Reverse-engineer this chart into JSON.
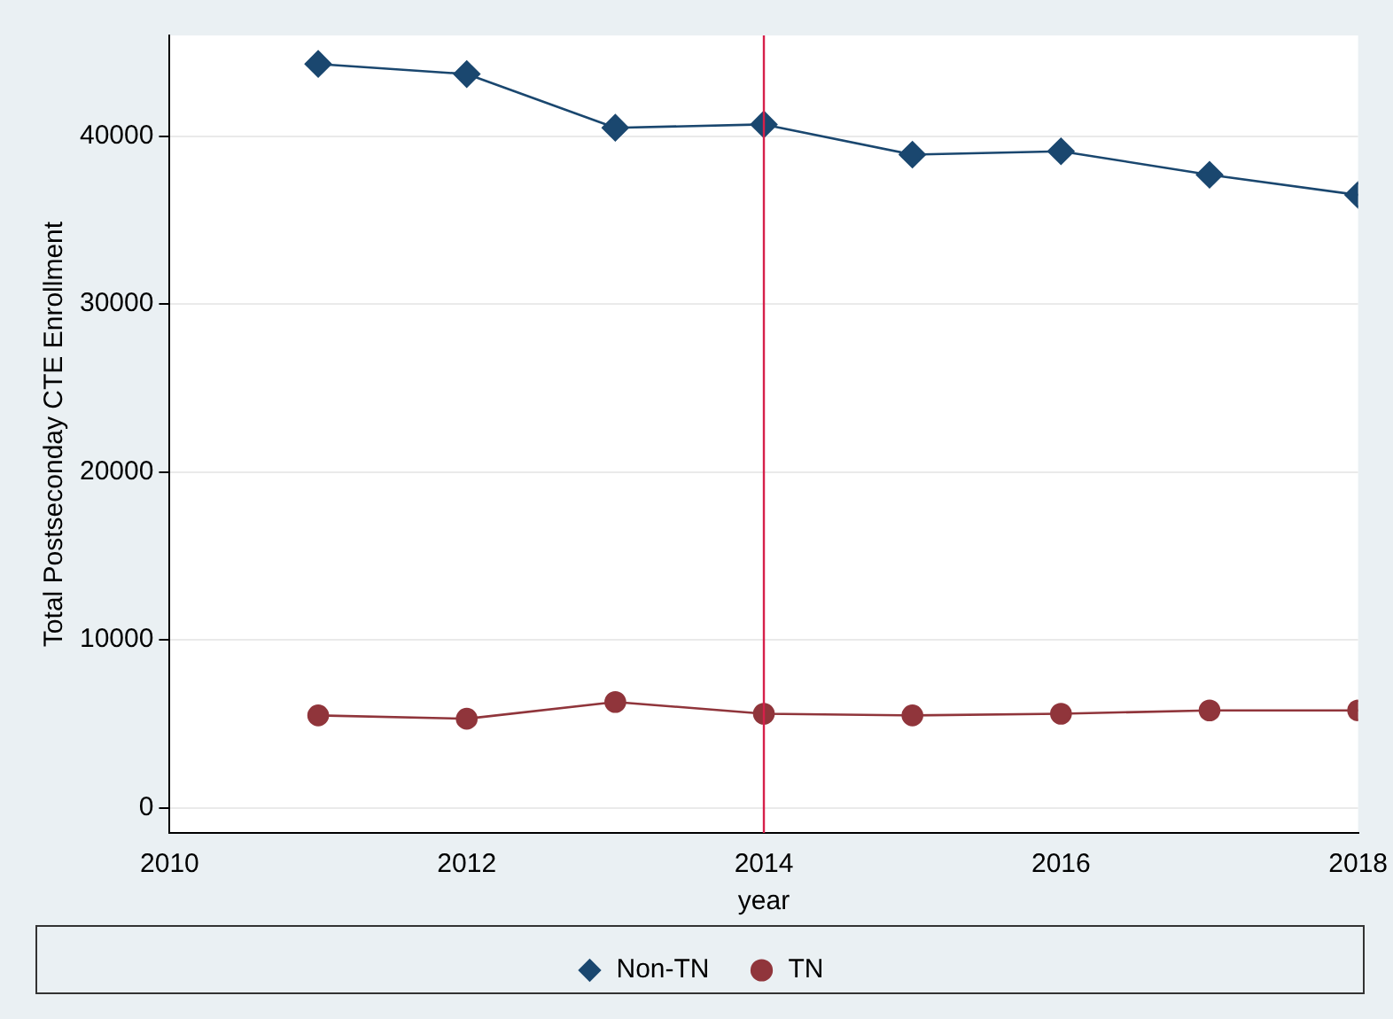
{
  "chart_data": {
    "type": "line",
    "xlabel": "year",
    "ylabel": "Total Postseconday CTE Enrollment",
    "x": [
      2011,
      2012,
      2013,
      2014,
      2015,
      2016,
      2017,
      2018
    ],
    "series": [
      {
        "name": "Non-TN",
        "color": "#1a476f",
        "marker": "diamond",
        "values": [
          44300,
          43700,
          40500,
          40700,
          38900,
          39100,
          37700,
          36500
        ]
      },
      {
        "name": "TN",
        "color": "#90353b",
        "marker": "circle",
        "values": [
          5500,
          5300,
          6300,
          5600,
          5500,
          5600,
          5800,
          5800
        ]
      }
    ],
    "xlim": [
      2010,
      2018
    ],
    "xticks": [
      2010,
      2012,
      2014,
      2016,
      2018
    ],
    "ylim": [
      -1500,
      46000
    ],
    "yticks": [
      0,
      10000,
      20000,
      30000,
      40000
    ],
    "ref_lines": [
      {
        "axis": "x",
        "value": 2014,
        "color": "#d6204a"
      }
    ],
    "grid": "y",
    "legend": "bottom",
    "line_style": "solid"
  }
}
